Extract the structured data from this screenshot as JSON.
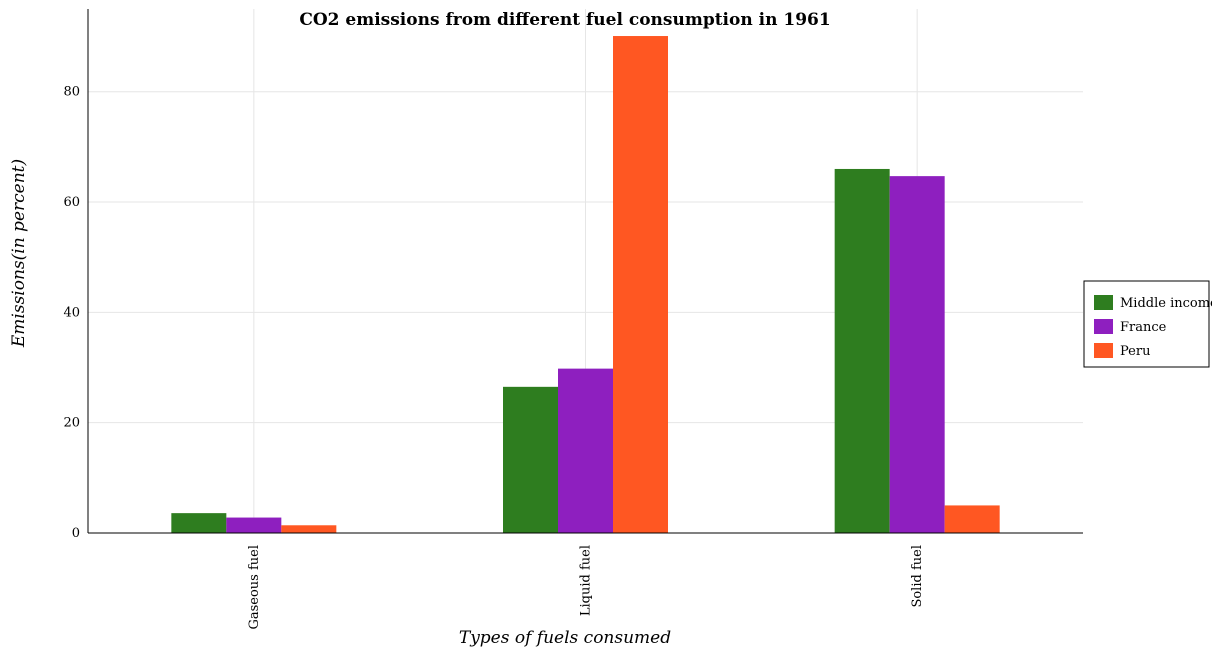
{
  "chart_data": {
    "type": "bar",
    "title": "CO2 emissions from different fuel consumption in 1961",
    "xlabel": "Types of fuels consumed",
    "ylabel": "Emissions(in percent)",
    "categories": [
      "Gaseous fuel",
      "Liquid fuel",
      "Solid fuel"
    ],
    "series": [
      {
        "name": "Middle income",
        "color": "#2e7d1f",
        "values": [
          3.6,
          26.5,
          66.0
        ]
      },
      {
        "name": "France",
        "color": "#8e1fbf",
        "values": [
          2.8,
          29.8,
          64.7
        ]
      },
      {
        "name": "Peru",
        "color": "#ff5722",
        "values": [
          1.4,
          90.1,
          5.0
        ]
      }
    ],
    "yticks": [
      0,
      20,
      40,
      60,
      80
    ],
    "ylim": [
      0,
      95
    ],
    "grid": true,
    "legend_position": "right"
  }
}
